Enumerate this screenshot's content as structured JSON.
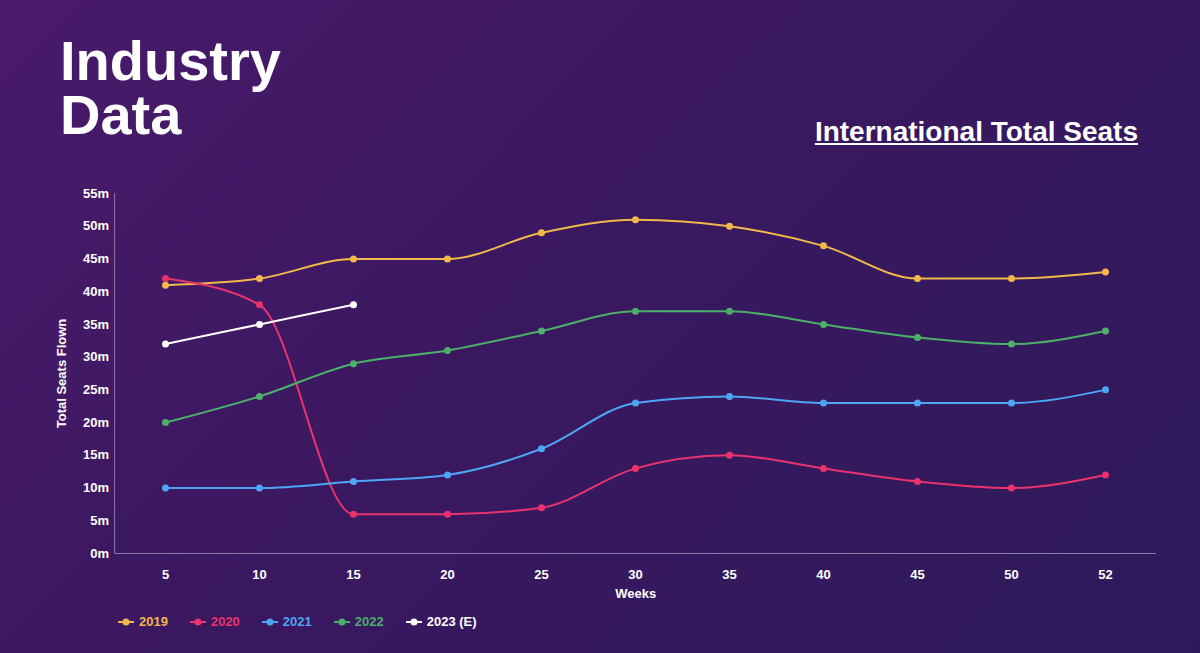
{
  "chart_data": {
    "type": "line",
    "title": "Industry Data",
    "subtitle": "International Total Seats",
    "x_label": "Weeks",
    "y_label": "Total Seats Flown",
    "categories": [
      "5",
      "10",
      "15",
      "20",
      "25",
      "30",
      "35",
      "40",
      "45",
      "50",
      "52"
    ],
    "series": [
      {
        "name": "2019",
        "color": "#f2b84b",
        "values": [
          41,
          42,
          45,
          45,
          49,
          51,
          50,
          47,
          42,
          42,
          43
        ]
      },
      {
        "name": "2020",
        "color": "#e8336d",
        "values": [
          42,
          38,
          6,
          6,
          7,
          13,
          15,
          13,
          11,
          10,
          12
        ]
      },
      {
        "name": "2021",
        "color": "#4da6f5",
        "values": [
          10,
          10,
          11,
          12,
          16,
          23,
          24,
          23,
          23,
          23,
          25
        ]
      },
      {
        "name": "2022",
        "color": "#4caf6a",
        "values": [
          20,
          24,
          29,
          31,
          34,
          37,
          37,
          35,
          33,
          32,
          34
        ]
      },
      {
        "name": "2023 (E)",
        "color": "#ffffff",
        "values": [
          32,
          35,
          38,
          null,
          null,
          null,
          null,
          null,
          null,
          null,
          null
        ]
      }
    ],
    "ylim": [
      0,
      55
    ],
    "yticks": [
      {
        "value": 0,
        "label": "0m"
      },
      {
        "value": 5,
        "label": "5m"
      },
      {
        "value": 10,
        "label": "10m"
      },
      {
        "value": 15,
        "label": "15m"
      },
      {
        "value": 20,
        "label": "20m"
      },
      {
        "value": 25,
        "label": "25m"
      },
      {
        "value": 30,
        "label": "30m"
      },
      {
        "value": 35,
        "label": "35m"
      },
      {
        "value": 40,
        "label": "40m"
      },
      {
        "value": 45,
        "label": "45m"
      },
      {
        "value": 50,
        "label": "50m"
      },
      {
        "value": 55,
        "label": "55m"
      }
    ],
    "grid": false,
    "legend": "bottom-left",
    "marker": "circle",
    "line_style": "smooth"
  }
}
